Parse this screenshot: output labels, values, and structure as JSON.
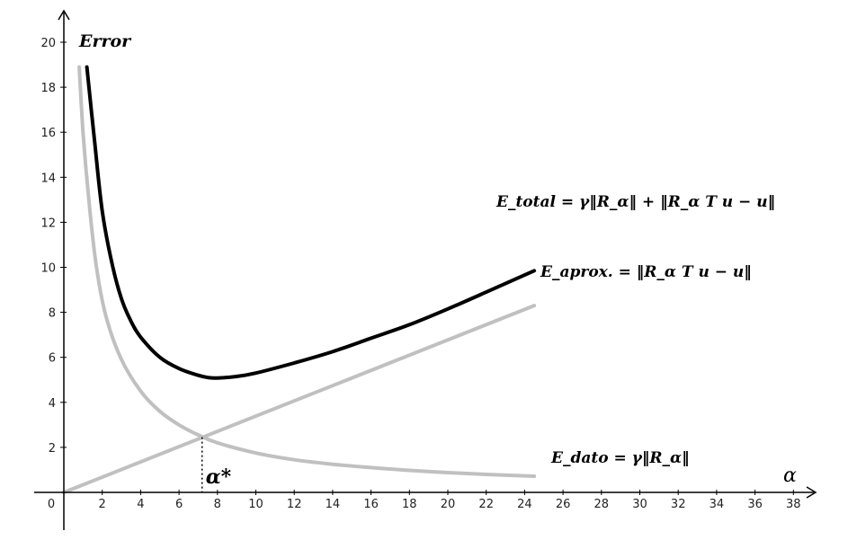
{
  "chart_data": {
    "type": "line",
    "title": "",
    "ylabel": "Error",
    "xlabel": "α",
    "xlim": [
      0,
      39
    ],
    "ylim": [
      0,
      21
    ],
    "x_ticks": [
      0,
      2,
      4,
      6,
      8,
      10,
      12,
      14,
      16,
      18,
      20,
      22,
      24,
      26,
      28,
      30,
      32,
      34,
      36,
      38
    ],
    "y_ticks": [
      2,
      4,
      6,
      8,
      10,
      12,
      14,
      16,
      18,
      20
    ],
    "grid": false,
    "series": [
      {
        "name": "E_total = γ‖R_α‖ + ‖R_α T u − u‖",
        "color": "#000000",
        "points": [
          [
            1.2,
            18.9
          ],
          [
            1.6,
            15.6
          ],
          [
            2.0,
            12.5
          ],
          [
            2.5,
            10.2
          ],
          [
            3.0,
            8.6
          ],
          [
            3.5,
            7.6
          ],
          [
            4.0,
            6.9
          ],
          [
            5.0,
            6.0
          ],
          [
            6.0,
            5.5
          ],
          [
            7.0,
            5.2
          ],
          [
            7.5,
            5.1
          ],
          [
            8.0,
            5.08
          ],
          [
            9.0,
            5.15
          ],
          [
            10.0,
            5.3
          ],
          [
            12.0,
            5.75
          ],
          [
            14.0,
            6.25
          ],
          [
            16.0,
            6.85
          ],
          [
            18.0,
            7.45
          ],
          [
            20.0,
            8.15
          ],
          [
            22.0,
            8.9
          ],
          [
            24.5,
            9.85
          ]
        ]
      },
      {
        "name": "E_dato = γ‖R_α‖",
        "color": "#c0c0c0",
        "points": [
          [
            0.8,
            18.9
          ],
          [
            1.0,
            16.0
          ],
          [
            1.3,
            13.0
          ],
          [
            1.7,
            10.0
          ],
          [
            2.2,
            7.8
          ],
          [
            3.0,
            5.9
          ],
          [
            4.0,
            4.5
          ],
          [
            5.0,
            3.6
          ],
          [
            6.0,
            3.0
          ],
          [
            7.0,
            2.55
          ],
          [
            8.0,
            2.2
          ],
          [
            10.0,
            1.75
          ],
          [
            12.0,
            1.45
          ],
          [
            14.0,
            1.25
          ],
          [
            16.0,
            1.1
          ],
          [
            18.0,
            0.98
          ],
          [
            20.0,
            0.88
          ],
          [
            22.0,
            0.8
          ],
          [
            24.5,
            0.72
          ]
        ]
      },
      {
        "name": "E_aprox. = ‖R_α T u − u‖",
        "color": "#c0c0c0",
        "points": [
          [
            0.0,
            0.0
          ],
          [
            24.5,
            8.3
          ]
        ]
      }
    ],
    "annotations": [
      {
        "text": "α*",
        "x": 7.2,
        "y": 2.45
      },
      {
        "text": "E_total = γ‖R_α‖ + ‖R_α T u − u‖"
      },
      {
        "text": "E_aprox. = ‖R_α T u − u‖"
      },
      {
        "text": "E_dato = γ‖R_α‖"
      }
    ]
  }
}
